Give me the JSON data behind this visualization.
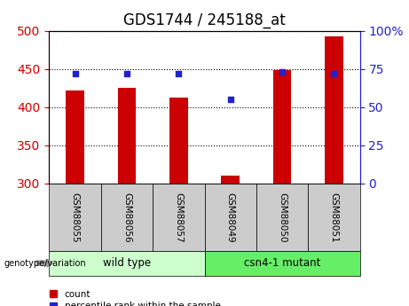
{
  "title": "GDS1744 / 245188_at",
  "samples": [
    "GSM88055",
    "GSM88056",
    "GSM88057",
    "GSM88049",
    "GSM88050",
    "GSM88051"
  ],
  "count_values": [
    422,
    425,
    413,
    310,
    448,
    492
  ],
  "percentile_values": [
    72,
    72,
    72,
    55,
    73,
    72
  ],
  "ylim_left": [
    300,
    500
  ],
  "ylim_right": [
    0,
    100
  ],
  "yticks_left": [
    300,
    350,
    400,
    450,
    500
  ],
  "yticks_right": [
    0,
    25,
    50,
    75,
    100
  ],
  "bar_color": "#cc0000",
  "marker_color": "#2222cc",
  "bar_width": 0.35,
  "group_wild_color": "#ccffcc",
  "group_mutant_color": "#66ee66",
  "sample_box_color": "#cccccc",
  "tick_label_color_left": "#cc0000",
  "tick_label_color_right": "#2222cc",
  "legend_count_label": "count",
  "legend_percentile_label": "percentile rank within the sample",
  "base_value": 300,
  "title_fontsize": 12
}
